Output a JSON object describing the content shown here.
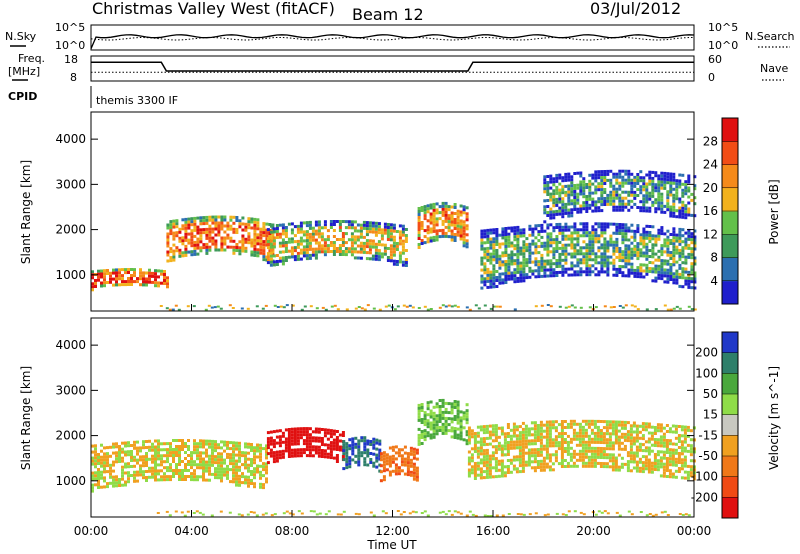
{
  "header": {
    "title": "Christmas Valley West (fitACF)",
    "beam": "Beam 12",
    "date": "03/Jul/2012"
  },
  "small_panels": {
    "nsky_label": "N.Sky",
    "nsky_ticks": [
      "10^5",
      "10^0"
    ],
    "nsearch_label": "N.Search",
    "freq_label_top": "Freq.",
    "freq_label_bottom": "[MHz]",
    "freq_ticks": [
      "18",
      "8"
    ],
    "nave_label": "Nave",
    "nave_ticks": [
      "60",
      "0"
    ],
    "cpid_label": "CPID",
    "cpid_value": "themis 3300 IF"
  },
  "colors": {
    "power_scale": [
      "#1f1fcc",
      "#2b6fb0",
      "#3e9a5a",
      "#63c04a",
      "#f2b21d",
      "#f58a1a",
      "#f24d16",
      "#e01010"
    ],
    "velocity_scale": [
      "#2038c8",
      "#2e7f6a",
      "#4aa83c",
      "#8fdc48",
      "#c8c8c0",
      "#f0a020",
      "#f07818",
      "#f04a14",
      "#e01010"
    ]
  },
  "chart_data": [
    {
      "type": "heatmap",
      "panel": "power",
      "ylabel": "Slant Range [km]",
      "y_ticks": [
        "1000",
        "2000",
        "3000",
        "4000"
      ],
      "ylim": [
        200,
        4600
      ],
      "xlim": [
        0,
        24
      ],
      "colorbar_label": "Power [dB]",
      "colorbar_ticks": [
        "4",
        "8",
        "12",
        "16",
        "20",
        "24",
        "28"
      ],
      "colorbar_range": [
        0,
        32
      ],
      "echo_bands": [
        {
          "t0": 0.0,
          "t1": 3.0,
          "r0": 700,
          "r1": 1100,
          "level": 26
        },
        {
          "t0": 3.0,
          "t1": 7.2,
          "r0": 1300,
          "r1": 2200,
          "level": 24
        },
        {
          "t0": 7.0,
          "t1": 12.5,
          "r0": 1200,
          "r1": 2100,
          "level": 18
        },
        {
          "t0": 13.0,
          "t1": 15.0,
          "r0": 1600,
          "r1": 2500,
          "level": 22
        },
        {
          "t0": 15.5,
          "t1": 24.0,
          "r0": 700,
          "r1": 2000,
          "level": 12
        },
        {
          "t0": 18.0,
          "t1": 24.0,
          "r0": 2200,
          "r1": 3200,
          "level": 10
        }
      ]
    },
    {
      "type": "heatmap",
      "panel": "velocity",
      "ylabel": "Slant Range [km]",
      "y_ticks": [
        "1000",
        "2000",
        "3000",
        "4000"
      ],
      "ylim": [
        200,
        4600
      ],
      "xlim": [
        0,
        24
      ],
      "x_ticks": [
        "00:00",
        "04:00",
        "08:00",
        "12:00",
        "16:00",
        "20:00",
        "00:00"
      ],
      "xlabel": "Time UT",
      "colorbar_label": "Velocity [m s^-1]",
      "colorbar_ticks": [
        "200",
        "100",
        "50",
        "15",
        "-15",
        "-50",
        "-100",
        "-200"
      ],
      "echo_bands": [
        {
          "t0": 0.0,
          "t1": 7.0,
          "r0": 800,
          "r1": 1800,
          "value": 0
        },
        {
          "t0": 7.0,
          "t1": 10.0,
          "r0": 1400,
          "r1": 2100,
          "value": -180
        },
        {
          "t0": 10.0,
          "t1": 11.5,
          "r0": 1200,
          "r1": 1900,
          "value": 150
        },
        {
          "t0": 11.5,
          "t1": 13.0,
          "r0": 1000,
          "r1": 1700,
          "value": -60
        },
        {
          "t0": 13.0,
          "t1": 15.0,
          "r0": 1800,
          "r1": 2700,
          "value": 30
        },
        {
          "t0": 15.0,
          "t1": 24.0,
          "r0": 1000,
          "r1": 2200,
          "value": 0
        }
      ]
    }
  ]
}
